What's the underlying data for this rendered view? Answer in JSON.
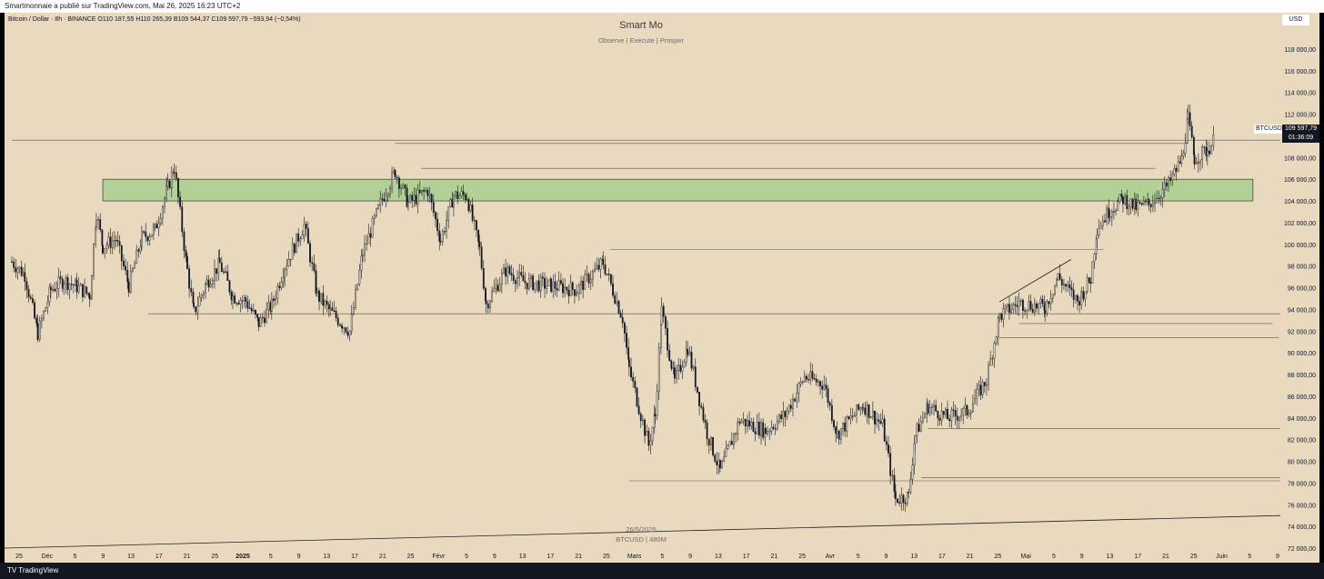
{
  "topbar": "Smartmonnaie a publié sur TradingView.com, Mai 26, 2025 16:23 UTC+2",
  "legend": "Bitcoin / Dollar · 8h · BINANCE  O110 187,55  H110 265,39  B109 544,37  C109 597,79  −593,94 (−0,54%)",
  "title": "Smart Mo",
  "subtitle": "Observe |  Execute |  Prosper",
  "currency": "USD",
  "watermark": {
    "date": "26/5/2025",
    "symbol": "BTCUSD | 480M"
  },
  "price_tag": {
    "symbol": "BTCUSD",
    "price": "109 597,79",
    "countdown": "01:36:09"
  },
  "footer": {
    "logo": "TV",
    "name": "TradingView"
  },
  "colors": {
    "background": "#e8d9bf",
    "candle": "#131722",
    "zone": "#a8cf8e",
    "zone_border": "#202020",
    "axis_text": "#131722"
  },
  "chart_data": {
    "type": "candlestick",
    "title": "Smart Mo",
    "symbol": "BTCUSD",
    "timeframe": "8h",
    "exchange": "BINANCE",
    "ylim": [
      72000,
      119000
    ],
    "y_ticks": [
      "118 000,00",
      "116 000,00",
      "114 000,00",
      "112 000,00",
      "110 000,00",
      "108 000,00",
      "106 000,00",
      "104 000,00",
      "102 000,00",
      "100 000,00",
      "98 000,00",
      "96 000,00",
      "94 000,00",
      "92 000,00",
      "90 000,00",
      "88 000,00",
      "86 000,00",
      "84 000,00",
      "82 000,00",
      "80 000,00",
      "78 000,00",
      "76 000,00",
      "74 000,00",
      "72 000,00"
    ],
    "x_ticks": [
      "25",
      "Déc",
      "5",
      "9",
      "13",
      "17",
      "21",
      "25",
      "2025",
      "5",
      "9",
      "13",
      "17",
      "21",
      "25",
      "Févr",
      "5",
      "9",
      "13",
      "17",
      "21",
      "25",
      "Mars",
      "5",
      "9",
      "13",
      "17",
      "21",
      "25",
      "Avr",
      "5",
      "9",
      "13",
      "17",
      "21",
      "25",
      "Mai",
      "5",
      "9",
      "13",
      "17",
      "21",
      "25",
      "Juin",
      "5",
      "9"
    ],
    "x_ticks_bold": [
      "2025"
    ],
    "ohlc": {
      "open": 110187.55,
      "high": 110265.39,
      "low": 109544.37,
      "close": 109597.79,
      "change": -593.94,
      "change_pct": -0.54
    },
    "close_path": [
      {
        "date": "2024-11-22",
        "close": 98400
      },
      {
        "date": "2024-11-24",
        "close": 97200
      },
      {
        "date": "2024-11-26",
        "close": 91800
      },
      {
        "date": "2024-11-28",
        "close": 95800
      },
      {
        "date": "2024-11-30",
        "close": 96700
      },
      {
        "date": "2024-12-02",
        "close": 96100
      },
      {
        "date": "2024-12-04",
        "close": 95300
      },
      {
        "date": "2024-12-05",
        "close": 102900
      },
      {
        "date": "2024-12-06",
        "close": 99800
      },
      {
        "date": "2024-12-08",
        "close": 100500
      },
      {
        "date": "2024-12-10",
        "close": 96200
      },
      {
        "date": "2024-12-12",
        "close": 100600
      },
      {
        "date": "2024-12-14",
        "close": 101300
      },
      {
        "date": "2024-12-16",
        "close": 105200
      },
      {
        "date": "2024-12-17",
        "close": 107100
      },
      {
        "date": "2024-12-19",
        "close": 97600
      },
      {
        "date": "2024-12-20",
        "close": 93700
      },
      {
        "date": "2024-12-22",
        "close": 96500
      },
      {
        "date": "2024-12-24",
        "close": 98200
      },
      {
        "date": "2024-12-26",
        "close": 95200
      },
      {
        "date": "2024-12-28",
        "close": 94800
      },
      {
        "date": "2024-12-30",
        "close": 92700
      },
      {
        "date": "2025-01-01",
        "close": 94400
      },
      {
        "date": "2025-01-03",
        "close": 98000
      },
      {
        "date": "2025-01-06",
        "close": 101800
      },
      {
        "date": "2025-01-08",
        "close": 95300
      },
      {
        "date": "2025-01-10",
        "close": 93800
      },
      {
        "date": "2025-01-13",
        "close": 92000
      },
      {
        "date": "2025-01-15",
        "close": 99200
      },
      {
        "date": "2025-01-18",
        "close": 104200
      },
      {
        "date": "2025-01-20",
        "close": 106700
      },
      {
        "date": "2025-01-22",
        "close": 103800
      },
      {
        "date": "2025-01-25",
        "close": 105000
      },
      {
        "date": "2025-01-27",
        "close": 100400
      },
      {
        "date": "2025-01-29",
        "close": 104500
      },
      {
        "date": "2025-01-31",
        "close": 104500
      },
      {
        "date": "2025-02-02",
        "close": 99500
      },
      {
        "date": "2025-02-03",
        "close": 94500
      },
      {
        "date": "2025-02-06",
        "close": 97600
      },
      {
        "date": "2025-02-09",
        "close": 96500
      },
      {
        "date": "2025-02-13",
        "close": 96200
      },
      {
        "date": "2025-02-17",
        "close": 95800
      },
      {
        "date": "2025-02-21",
        "close": 98300
      },
      {
        "date": "2025-02-24",
        "close": 93200
      },
      {
        "date": "2025-02-25",
        "close": 88500
      },
      {
        "date": "2025-02-28",
        "close": 81500
      },
      {
        "date": "2025-03-01",
        "close": 84200
      },
      {
        "date": "2025-03-02",
        "close": 93900
      },
      {
        "date": "2025-03-04",
        "close": 87300
      },
      {
        "date": "2025-03-06",
        "close": 90500
      },
      {
        "date": "2025-03-09",
        "close": 82600
      },
      {
        "date": "2025-03-11",
        "close": 79100
      },
      {
        "date": "2025-03-14",
        "close": 83800
      },
      {
        "date": "2025-03-18",
        "close": 82800
      },
      {
        "date": "2025-03-21",
        "close": 84300
      },
      {
        "date": "2025-03-24",
        "close": 87800
      },
      {
        "date": "2025-03-27",
        "close": 87100
      },
      {
        "date": "2025-03-29",
        "close": 82500
      },
      {
        "date": "2025-04-02",
        "close": 85200
      },
      {
        "date": "2025-04-05",
        "close": 83300
      },
      {
        "date": "2025-04-07",
        "close": 76500
      },
      {
        "date": "2025-04-09",
        "close": 76800
      },
      {
        "date": "2025-04-10",
        "close": 82400
      },
      {
        "date": "2025-04-12",
        "close": 85100
      },
      {
        "date": "2025-04-15",
        "close": 84000
      },
      {
        "date": "2025-04-18",
        "close": 84600
      },
      {
        "date": "2025-04-21",
        "close": 87500
      },
      {
        "date": "2025-04-23",
        "close": 93400
      },
      {
        "date": "2025-04-26",
        "close": 94600
      },
      {
        "date": "2025-04-30",
        "close": 94200
      },
      {
        "date": "2025-05-02",
        "close": 97000
      },
      {
        "date": "2025-05-05",
        "close": 94700
      },
      {
        "date": "2025-05-07",
        "close": 96800
      },
      {
        "date": "2025-05-08",
        "close": 101500
      },
      {
        "date": "2025-05-10",
        "close": 103200
      },
      {
        "date": "2025-05-12",
        "close": 104200
      },
      {
        "date": "2025-05-14",
        "close": 103400
      },
      {
        "date": "2025-05-16",
        "close": 103700
      },
      {
        "date": "2025-05-19",
        "close": 105500
      },
      {
        "date": "2025-05-21",
        "close": 107800
      },
      {
        "date": "2025-05-22",
        "close": 111500
      },
      {
        "date": "2025-05-23",
        "close": 107900
      },
      {
        "date": "2025-05-25",
        "close": 108700
      },
      {
        "date": "2025-05-26",
        "close": 109597.79
      }
    ],
    "annotations": {
      "zones": [
        {
          "date_from": "2024-12-06",
          "date_to": "2025-06-01",
          "price_low": 104000,
          "price_high": 106000,
          "color": "green"
        }
      ],
      "horizontal_lines": [
        {
          "price": 109600,
          "date_from": "2024-11-22",
          "date_to": "2025-06-12"
        },
        {
          "price": 109300,
          "date_from": "2025-01-20",
          "date_to": "2025-05-22"
        },
        {
          "price": 107000,
          "date_from": "2025-01-24",
          "date_to": "2025-05-17"
        },
        {
          "price": 99500,
          "date_from": "2025-02-22",
          "date_to": "2025-05-09"
        },
        {
          "price": 93600,
          "date_from": "2024-12-13",
          "date_to": "2025-06-12"
        },
        {
          "price": 92700,
          "date_from": "2025-04-26",
          "date_to": "2025-06-04"
        },
        {
          "price": 91400,
          "date_from": "2025-04-23",
          "date_to": "2025-06-05"
        },
        {
          "price": 83000,
          "date_from": "2025-04-12",
          "date_to": "2025-06-06"
        },
        {
          "price": 78500,
          "date_from": "2025-04-11",
          "date_to": "2025-06-07"
        },
        {
          "price": 78200,
          "date_from": "2025-02-25",
          "date_to": "2025-06-07"
        }
      ],
      "trendlines": [
        {
          "from": {
            "date": "2024-11-22",
            "price": 72000
          },
          "to": {
            "date": "2025-06-10",
            "price": 75000
          }
        },
        {
          "from": {
            "date": "2025-04-23",
            "price": 94700
          },
          "to": {
            "date": "2025-05-04",
            "price": 98600
          }
        }
      ]
    }
  }
}
